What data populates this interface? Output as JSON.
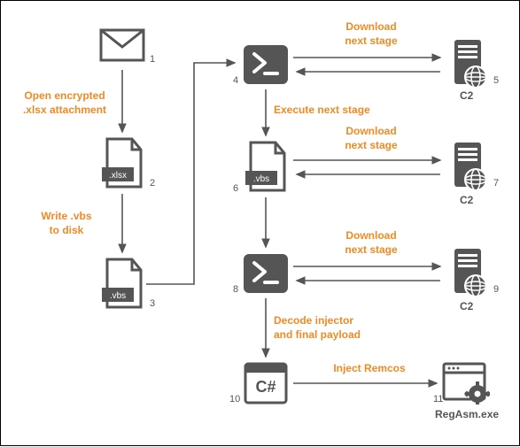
{
  "type": "flowchart",
  "colors": {
    "node_fill": "#555555",
    "text_orange": "#f08a24",
    "text_dark": "#555555",
    "border": "#000000",
    "background": "#ffffff"
  },
  "nodes": {
    "n1": {
      "num": "1",
      "type": "email"
    },
    "n2": {
      "num": "2",
      "type": "file",
      "ext": ".xlsx"
    },
    "n3": {
      "num": "3",
      "type": "file",
      "ext": ".vbs"
    },
    "n4": {
      "num": "4",
      "type": "powershell"
    },
    "n5": {
      "num": "5",
      "type": "server",
      "caption": "C2"
    },
    "n6": {
      "num": "6",
      "type": "file",
      "ext": ".vbs"
    },
    "n7": {
      "num": "7",
      "type": "server",
      "caption": "C2"
    },
    "n8": {
      "num": "8",
      "type": "powershell"
    },
    "n9": {
      "num": "9",
      "type": "server",
      "caption": "C2"
    },
    "n10": {
      "num": "10",
      "type": "csharp",
      "ext": "C#"
    },
    "n11": {
      "num": "11",
      "type": "window",
      "caption": "RegAsm.exe"
    }
  },
  "labels": {
    "l1": "Open encrypted\n.xlsx attachment",
    "l2": "Write .vbs\nto disk",
    "l3": "Download\nnext stage",
    "l4": "Execute next stage",
    "l5": "Download\nnext stage",
    "l6": "Download\nnext stage",
    "l7": "Decode injector\nand final payload",
    "l8": "Inject Remcos"
  }
}
